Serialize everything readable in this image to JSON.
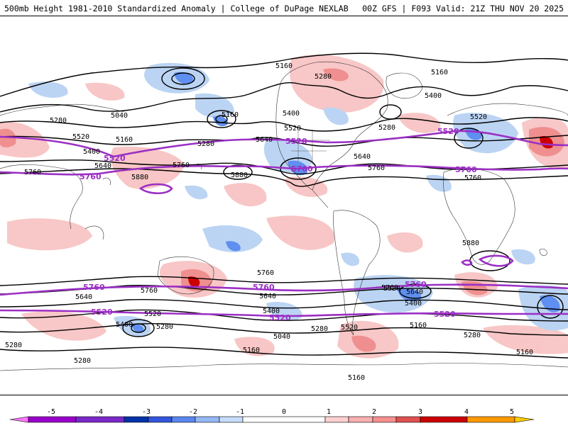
{
  "header": {
    "title": "500mb Height 1981-2010 Standardized Anomaly | College of DuPage NEXLAB",
    "run": "00Z GFS | F093 Valid: 21Z THU NOV 20 2025"
  },
  "colorbar": {
    "ticks": [
      "-5",
      "-4",
      "-3",
      "-2",
      "-1",
      "0",
      "1",
      "2",
      "3",
      "4",
      "5"
    ],
    "colors": [
      "#ff77ff",
      "#9a00cc",
      "#0033aa",
      "#3355dd",
      "#5a86ef",
      "#c6dcfa",
      "#ffffff",
      "#ffd0d0",
      "#f59090",
      "#e05050",
      "#cc0000",
      "#ff9900",
      "#ffcc00"
    ]
  },
  "contour_labels": {
    "black": [
      "5160",
      "5280",
      "5160",
      "5400",
      "5040",
      "5280",
      "5520",
      "5160",
      "5400",
      "5520",
      "5280",
      "5640",
      "5280",
      "5520",
      "5400",
      "5160",
      "5640",
      "5760",
      "5880",
      "5760",
      "5640",
      "5760",
      "5880",
      "5760",
      "5760",
      "5640",
      "5760",
      "5640",
      "5520",
      "5400",
      "5280",
      "5160",
      "5280",
      "5400",
      "5520",
      "5640",
      "5040",
      "5520",
      "5280",
      "5160",
      "5160",
      "5280",
      "5400",
      "5280",
      "5160",
      "5880",
      "5760"
    ],
    "purple": [
      "5520",
      "5760",
      "5520",
      "5760",
      "5520",
      "5760",
      "5760",
      "5520",
      "5760",
      "5520",
      "5760",
      "5520",
      "5760",
      "5520"
    ]
  },
  "colors": {
    "height_contour": "#000000",
    "key_contour": "#9b2fc4",
    "positive": "#f6b8b8",
    "negative": "#b9d2f2"
  }
}
